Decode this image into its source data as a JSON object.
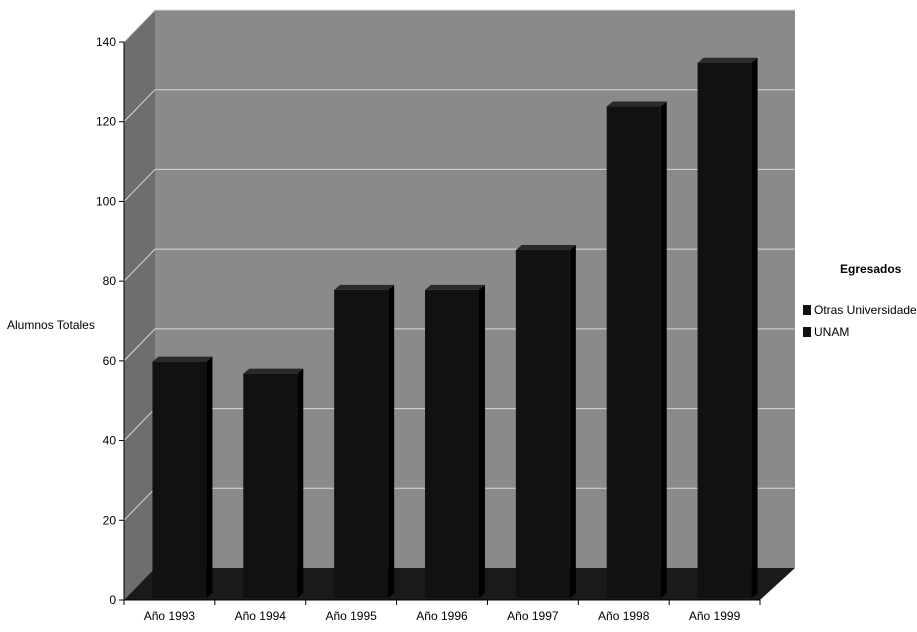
{
  "chart_data": {
    "type": "bar",
    "title": "",
    "xlabel": "",
    "ylabel": "Alumnos Totales",
    "categories": [
      "Año 1993",
      "Año 1994",
      "Año 1995",
      "Año 1996",
      "Año 1997",
      "Año 1998",
      "Año 1999"
    ],
    "series": [
      {
        "name": "Otras Universidades",
        "values": [
          2,
          2,
          1,
          2,
          0,
          0,
          0
        ]
      },
      {
        "name": "UNAM",
        "values": [
          57,
          54,
          76,
          75,
          87,
          123,
          134
        ]
      }
    ],
    "ylim": [
      0,
      140
    ],
    "yticks": [
      0,
      20,
      40,
      60,
      80,
      100,
      120,
      140
    ],
    "grid": true,
    "three_d": true,
    "legend": {
      "title": "Egresados",
      "position": "right"
    },
    "colors": {
      "bar": "#111111",
      "wall": "#8a8a8a",
      "floor": "#1a1a1a"
    }
  }
}
